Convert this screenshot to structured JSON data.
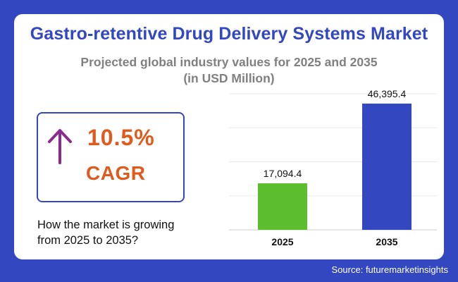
{
  "header": {
    "title": "Gastro-retentive Drug Delivery Systems Market",
    "subtitle_line1": "Projected global industry values for 2025 and 2035",
    "subtitle_line2": "(in USD Million)"
  },
  "cagr": {
    "value": "10.5%",
    "label": "CAGR",
    "icon": "arrow-up-icon",
    "color": "#e05a1e"
  },
  "question": {
    "line1": "How the market is growing",
    "line2": "from 2025 to 2035?"
  },
  "footer": {
    "source": "Source: futuremarketinsights"
  },
  "colors": {
    "background": "#3347c0",
    "bar_2025": "#5cbd2e",
    "bar_2035": "#3347c0",
    "arrow": "#8a2b8f"
  },
  "chart_data": {
    "type": "bar",
    "categories": [
      "2025",
      "2035"
    ],
    "values": [
      17094.4,
      46395.4
    ],
    "value_labels": [
      "17,094.4",
      "46,395.4"
    ],
    "bar_colors": [
      "#5cbd2e",
      "#3347c0"
    ],
    "title": "",
    "xlabel": "",
    "ylabel": "",
    "ylim": [
      0,
      50000
    ],
    "grid": true,
    "legend": "none"
  }
}
